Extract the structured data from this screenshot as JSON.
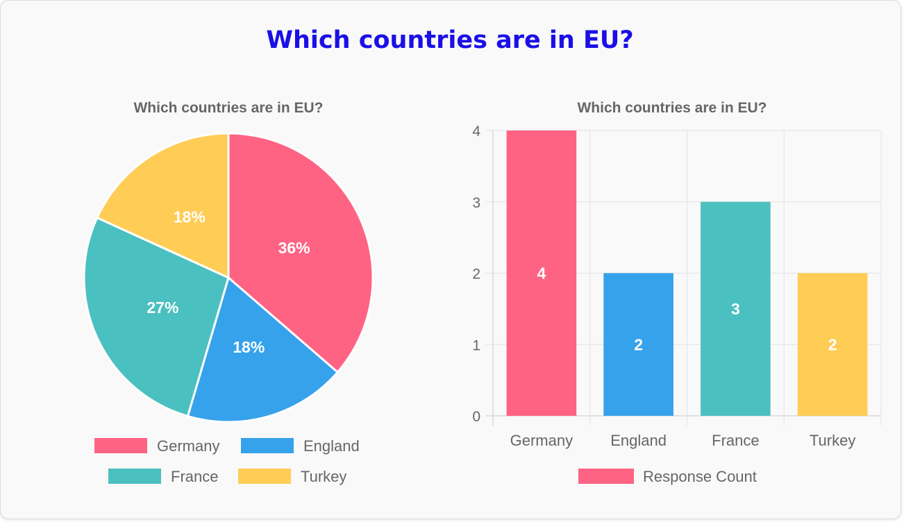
{
  "page": {
    "title": "Which countries are in EU?"
  },
  "colors": {
    "Germany": "#ff6384",
    "England": "#36a2eb",
    "France": "#4bc0c0",
    "Turkey": "#ffcd56",
    "title": "#1a0fe6"
  },
  "chart_data": [
    {
      "type": "pie",
      "title": "Which countries are in EU?",
      "categories": [
        "Germany",
        "England",
        "France",
        "Turkey"
      ],
      "values": [
        4,
        2,
        3,
        2
      ],
      "labels": [
        "36%",
        "18%",
        "27%",
        "18%"
      ],
      "legend": [
        "Germany",
        "England",
        "France",
        "Turkey"
      ],
      "legend_position": "bottom"
    },
    {
      "type": "bar",
      "title": "Which countries are in EU?",
      "categories": [
        "Germany",
        "England",
        "France",
        "Turkey"
      ],
      "series": [
        {
          "name": "Response Count",
          "values": [
            4,
            2,
            3,
            2
          ]
        }
      ],
      "ylim": [
        0,
        4
      ],
      "yticks": [
        "0",
        "1",
        "2",
        "3",
        "4"
      ],
      "grid": true,
      "legend_position": "bottom"
    }
  ]
}
